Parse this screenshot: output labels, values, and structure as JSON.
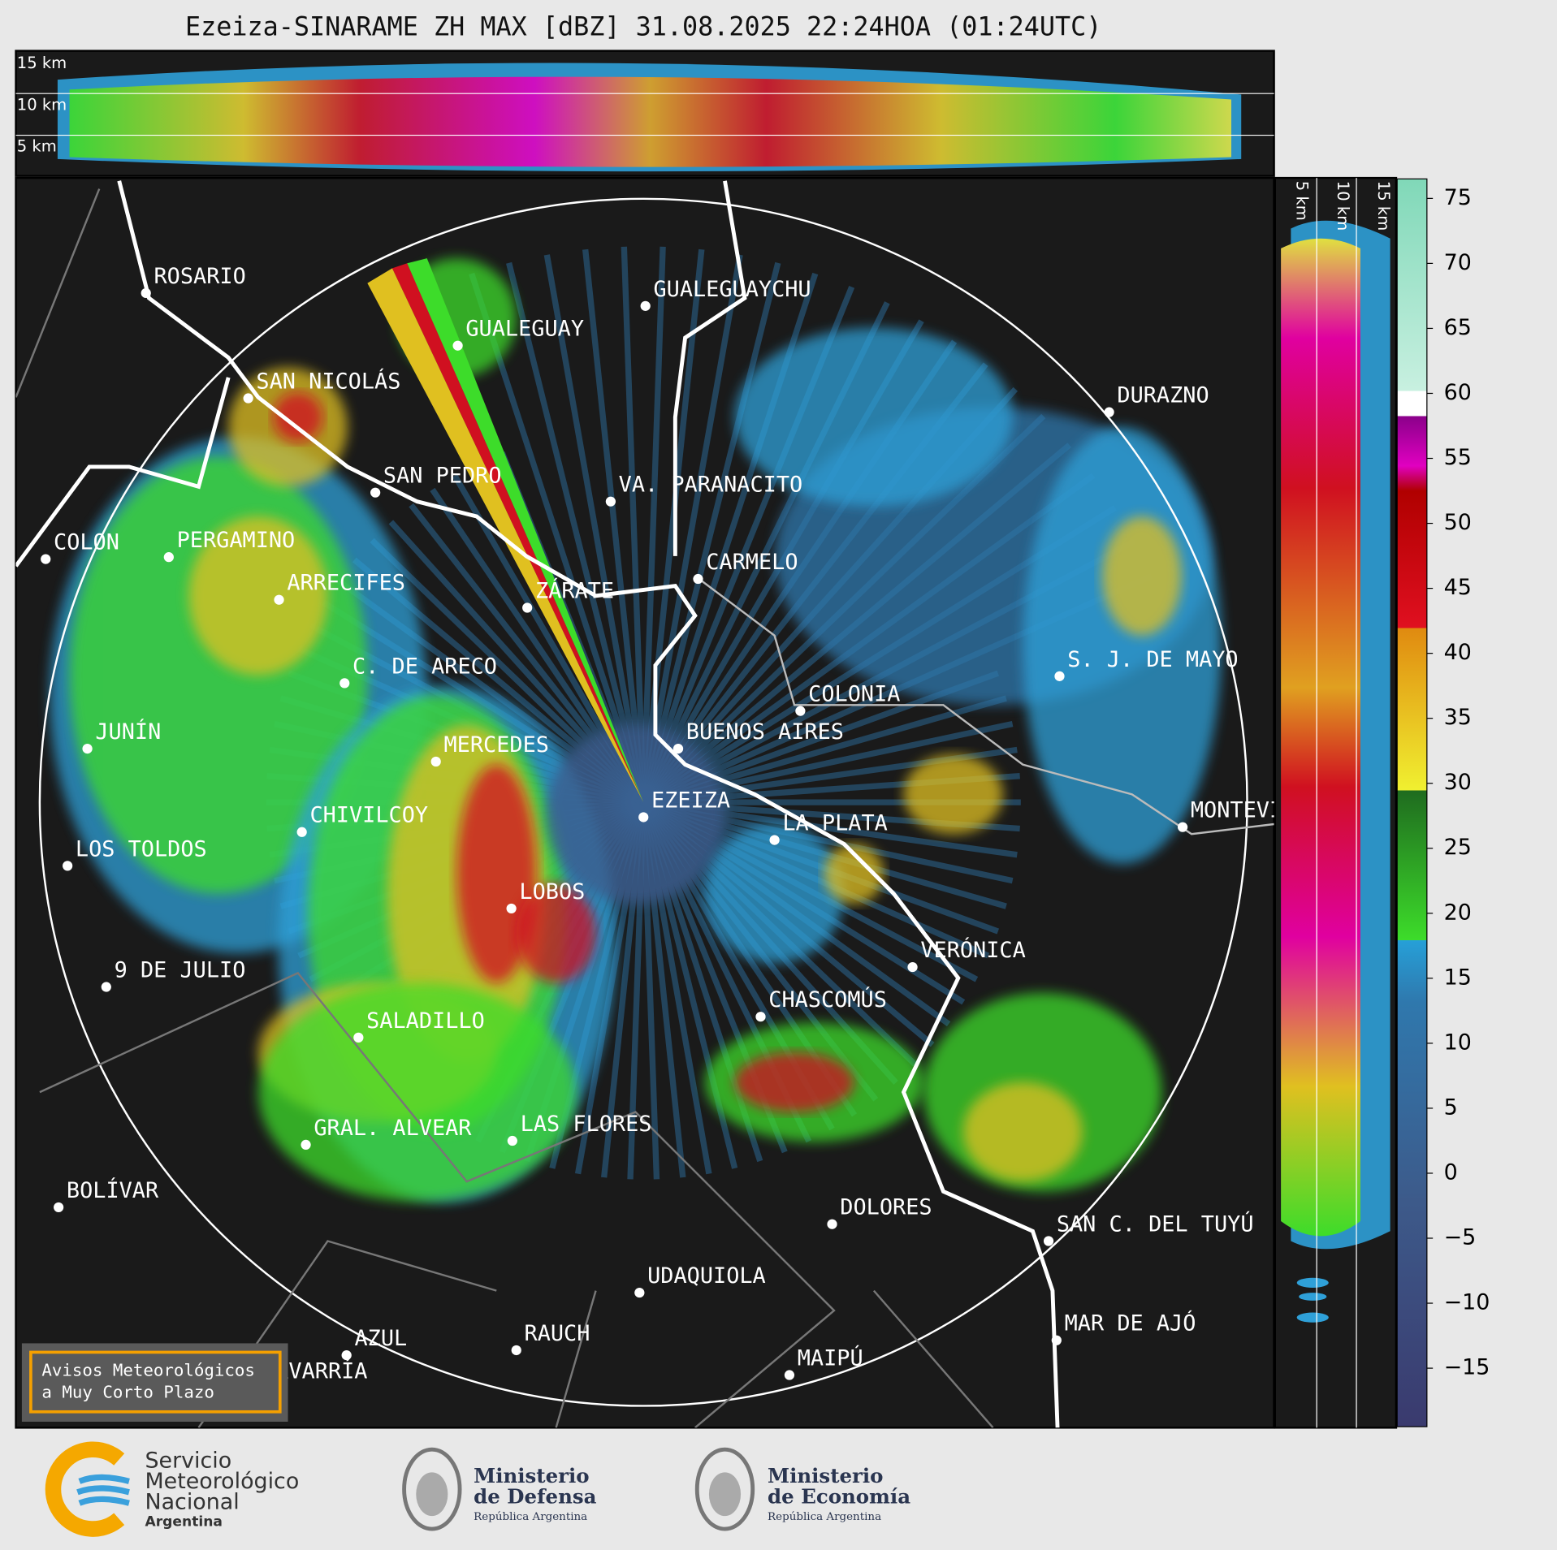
{
  "title": "Ezeiza-SINARAME ZH MAX [dBZ] 31.08.2025 22:24HOA (01:24UTC)",
  "top_panel": {
    "height_labels": [
      "15 km",
      "10 km",
      "5 km"
    ]
  },
  "side_panel": {
    "height_labels": [
      "5 km",
      "10 km",
      "15 km"
    ]
  },
  "colorbar": {
    "lim": [
      -19.5,
      76.5
    ],
    "ticks": [
      75,
      70,
      65,
      60,
      55,
      50,
      45,
      40,
      35,
      30,
      25,
      20,
      15,
      10,
      5,
      0,
      {
        "value": -5,
        "label": "−5"
      },
      {
        "value": -10,
        "label": "−10"
      },
      {
        "value": -15,
        "label": "−15"
      }
    ]
  },
  "cities": [
    {
      "name": "ROSARIO"
    },
    {
      "name": "GUALEGUAYCHU"
    },
    {
      "name": "GUALEGUAY"
    },
    {
      "name": "SAN NICOLÁS"
    },
    {
      "name": "DURAZNO"
    },
    {
      "name": "SAN PEDRO"
    },
    {
      "name": "VA. PARANACITO"
    },
    {
      "name": "COLON"
    },
    {
      "name": "PERGAMINO"
    },
    {
      "name": "CARMELO"
    },
    {
      "name": "ZÁRATE"
    },
    {
      "name": "ARRECIFES"
    },
    {
      "name": "S. J. DE MAYO"
    },
    {
      "name": "C. DE ARECO"
    },
    {
      "name": "COLONIA"
    },
    {
      "name": "JUNÍN"
    },
    {
      "name": "MERCEDES"
    },
    {
      "name": "BUENOS AIRES"
    },
    {
      "name": "MONTEVIDEO"
    },
    {
      "name": "EZEIZA"
    },
    {
      "name": "CHIVILCOY"
    },
    {
      "name": "LA PLATA"
    },
    {
      "name": "LOS TOLDOS"
    },
    {
      "name": "LOBOS"
    },
    {
      "name": "VERÓNICA"
    },
    {
      "name": "9 DE JULIO"
    },
    {
      "name": "CHASCOMÚS"
    },
    {
      "name": "SALADILLO"
    },
    {
      "name": "LAS FLORES"
    },
    {
      "name": "GRAL. ALVEAR"
    },
    {
      "name": "BOLÍVAR"
    },
    {
      "name": "DOLORES"
    },
    {
      "name": "SAN C. DEL TUYÚ"
    },
    {
      "name": "UDAQUIOLA"
    },
    {
      "name": "MAR DE AJÓ"
    },
    {
      "name": "RAUCH"
    },
    {
      "name": "AZUL"
    },
    {
      "name": "OLAVARRÍA"
    },
    {
      "name": "MAIPÚ"
    }
  ],
  "notice": [
    "Avisos Meteorológicos",
    "a Muy Corto Plazo"
  ],
  "footer": {
    "smn": [
      "Servicio",
      "Meteorológico",
      "Nacional",
      "Argentina"
    ],
    "defensa": [
      "Ministerio",
      "de Defensa",
      "República Argentina"
    ],
    "economia": [
      "Ministerio",
      "de Economía",
      "República Argentina"
    ]
  }
}
